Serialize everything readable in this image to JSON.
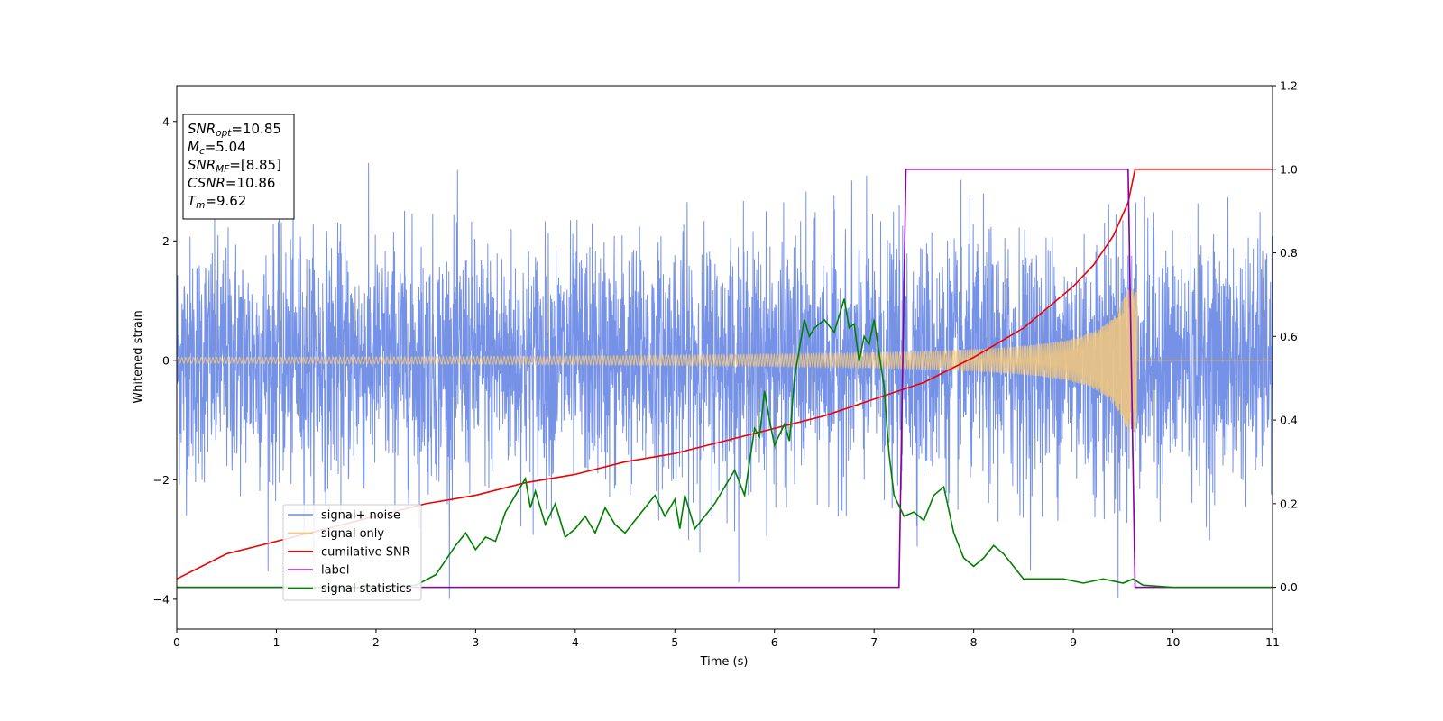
{
  "chart_data": {
    "type": "line",
    "xlabel": "Time (s)",
    "ylabel": "Whitened strain",
    "xlim": [
      0,
      11
    ],
    "ylim": [
      -4.5,
      4.6
    ],
    "y2lim": [
      -0.1,
      1.2
    ],
    "x_ticks": [
      "0",
      "1",
      "2",
      "3",
      "4",
      "5",
      "6",
      "7",
      "8",
      "9",
      "10",
      "11"
    ],
    "y_ticks": [
      "−4",
      "−2",
      "0",
      "2",
      "4"
    ],
    "y_tick_values": [
      -4,
      -2,
      0,
      2,
      4
    ],
    "y2_ticks": [
      "0.0",
      "0.2",
      "0.4",
      "0.6",
      "0.8",
      "1.0",
      "1.2"
    ],
    "y2_tick_values": [
      0.0,
      0.2,
      0.4,
      0.6,
      0.8,
      1.0,
      1.2
    ],
    "grid": false,
    "legend_position": "lower-left",
    "annotations": [
      {
        "label": "SNR",
        "sub": "opt",
        "value": "=10.85"
      },
      {
        "label": "M",
        "sub": "c",
        "value": "=5.04"
      },
      {
        "label": "SNR",
        "sub": "MF",
        "value": "=[8.85]"
      },
      {
        "label": "CSNR",
        "sub": "",
        "value": "=10.86"
      },
      {
        "label": "T",
        "sub": "m",
        "value": "=9.62"
      }
    ],
    "series": [
      {
        "name": "signal+ noise",
        "axis": "left",
        "color": "#6f8ce6",
        "noise_std": 1.0,
        "signal_amplitude_start": 0.05,
        "signal_amplitude_end": 1.2,
        "merger_time": 9.62
      },
      {
        "name": "signal only",
        "axis": "left",
        "color": "#f5c87a",
        "amplitude_start": 0.05,
        "amplitude_end": 1.2,
        "merger_time": 9.62
      },
      {
        "name": "cumilative SNR",
        "axis": "right",
        "color": "#ee0000",
        "x": [
          0,
          0.5,
          1,
          1.5,
          2,
          2.5,
          3,
          3.5,
          4,
          4.5,
          5,
          5.5,
          6,
          6.5,
          7,
          7.5,
          8,
          8.5,
          9,
          9.2,
          9.4,
          9.55,
          9.62,
          9.7,
          11
        ],
        "y": [
          0.02,
          0.08,
          0.11,
          0.14,
          0.17,
          0.2,
          0.22,
          0.25,
          0.27,
          0.3,
          0.32,
          0.35,
          0.38,
          0.41,
          0.45,
          0.49,
          0.55,
          0.62,
          0.72,
          0.77,
          0.84,
          0.92,
          1.0,
          1.0,
          1.0
        ]
      },
      {
        "name": "label",
        "axis": "right",
        "color": "#8800a0",
        "x": [
          0,
          7.25,
          7.32,
          9.55,
          9.62,
          11
        ],
        "y": [
          0.0,
          0.0,
          1.0,
          1.0,
          0.0,
          0.0
        ]
      },
      {
        "name": "signal statistics",
        "axis": "right",
        "color": "#008000",
        "x": [
          0,
          1.0,
          2.0,
          2.4,
          2.6,
          2.8,
          2.9,
          3.0,
          3.1,
          3.2,
          3.3,
          3.4,
          3.5,
          3.55,
          3.6,
          3.7,
          3.8,
          3.9,
          4.0,
          4.1,
          4.2,
          4.3,
          4.4,
          4.5,
          4.6,
          4.7,
          4.8,
          4.9,
          5.0,
          5.05,
          5.1,
          5.2,
          5.3,
          5.4,
          5.5,
          5.6,
          5.7,
          5.8,
          5.85,
          5.9,
          5.95,
          6.0,
          6.1,
          6.15,
          6.2,
          6.3,
          6.35,
          6.4,
          6.5,
          6.6,
          6.7,
          6.75,
          6.8,
          6.85,
          6.9,
          6.95,
          7.0,
          7.1,
          7.15,
          7.2,
          7.3,
          7.4,
          7.5,
          7.6,
          7.7,
          7.8,
          7.9,
          8.0,
          8.1,
          8.2,
          8.3,
          8.4,
          8.5,
          8.7,
          8.9,
          9.1,
          9.3,
          9.5,
          9.6,
          9.7,
          10.0,
          11.0
        ],
        "y": [
          0.0,
          0.0,
          0.0,
          0.005,
          0.03,
          0.1,
          0.13,
          0.09,
          0.12,
          0.11,
          0.18,
          0.22,
          0.26,
          0.19,
          0.23,
          0.15,
          0.2,
          0.12,
          0.14,
          0.17,
          0.13,
          0.19,
          0.15,
          0.13,
          0.16,
          0.19,
          0.22,
          0.17,
          0.21,
          0.14,
          0.22,
          0.14,
          0.17,
          0.2,
          0.24,
          0.28,
          0.22,
          0.38,
          0.36,
          0.47,
          0.4,
          0.34,
          0.39,
          0.35,
          0.5,
          0.64,
          0.6,
          0.62,
          0.64,
          0.61,
          0.69,
          0.62,
          0.63,
          0.54,
          0.6,
          0.58,
          0.64,
          0.48,
          0.32,
          0.22,
          0.17,
          0.18,
          0.16,
          0.22,
          0.24,
          0.13,
          0.07,
          0.05,
          0.07,
          0.1,
          0.08,
          0.05,
          0.02,
          0.02,
          0.02,
          0.01,
          0.02,
          0.01,
          0.02,
          0.005,
          0.0,
          0.0
        ]
      }
    ]
  }
}
